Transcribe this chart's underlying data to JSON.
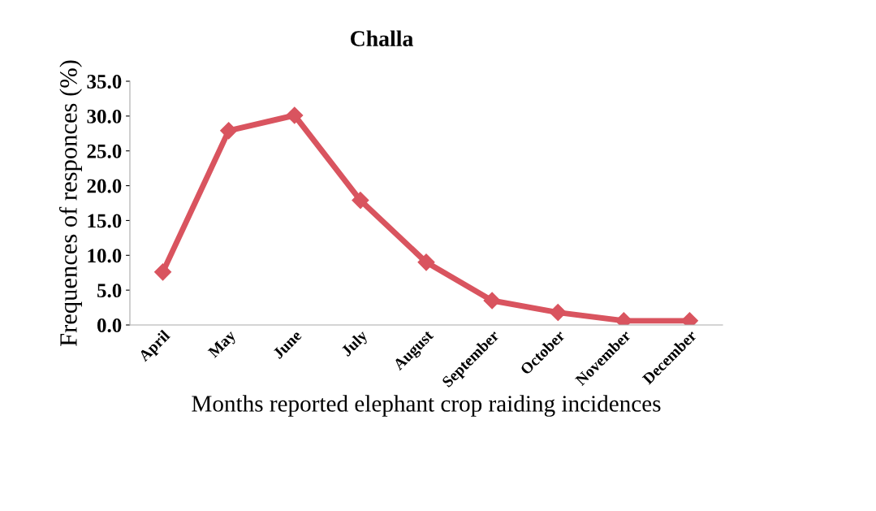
{
  "chart_data": {
    "type": "line",
    "title": "Challa",
    "xlabel": "Months reported elephant crop raiding incidences",
    "ylabel": "Frequences of responces (%)",
    "categories": [
      "April",
      "May",
      "June",
      "July",
      "August",
      "September",
      "October",
      "November",
      "December"
    ],
    "series": [
      {
        "color": "#d9545f",
        "values": [
          7.6,
          27.9,
          30.1,
          17.9,
          9.0,
          3.5,
          1.8,
          0.6,
          0.6
        ]
      }
    ],
    "ylim": [
      0,
      35
    ],
    "yticks": [
      {
        "value": 0,
        "label": "0.0"
      },
      {
        "value": 5,
        "label": "5.0"
      },
      {
        "value": 10,
        "label": "10.0"
      },
      {
        "value": 15,
        "label": "15.0"
      },
      {
        "value": 20,
        "label": "20.0"
      },
      {
        "value": 25,
        "label": "25.0"
      },
      {
        "value": 30,
        "label": "30.0"
      },
      {
        "value": 35,
        "label": "35.0"
      }
    ],
    "marker": "diamond",
    "grid": false
  }
}
